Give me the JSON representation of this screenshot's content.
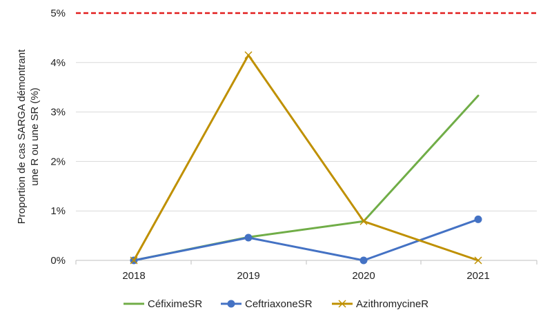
{
  "chart_data": {
    "type": "line",
    "title": "",
    "xlabel": "",
    "ylabel_lines": [
      "Proportion de cas SARGA démontrant",
      "une R ou une SR (%)"
    ],
    "categories": [
      "2018",
      "2019",
      "2020",
      "2021"
    ],
    "y_tick_labels": [
      "0%",
      "1%",
      "2%",
      "3%",
      "4%",
      "5%"
    ],
    "y_tick_values": [
      0,
      1,
      2,
      3,
      4,
      5
    ],
    "ylim": [
      0,
      5
    ],
    "grid": "horizontal",
    "legend_position": "bottom",
    "threshold": {
      "value": 5,
      "color": "#e11d1d",
      "style": "dashed"
    },
    "series": [
      {
        "name": "CéfiximeSR",
        "values": [
          0,
          0.47,
          0.79,
          3.33
        ],
        "color": "#70ad47",
        "marker": "none"
      },
      {
        "name": "CeftriaxoneSR",
        "values": [
          0,
          0.46,
          0,
          0.83
        ],
        "color": "#4472c4",
        "marker": "circle"
      },
      {
        "name": "AzithromycineR",
        "values": [
          0,
          4.15,
          0.79,
          0
        ],
        "color": "#bf9000",
        "marker": "x"
      }
    ]
  }
}
